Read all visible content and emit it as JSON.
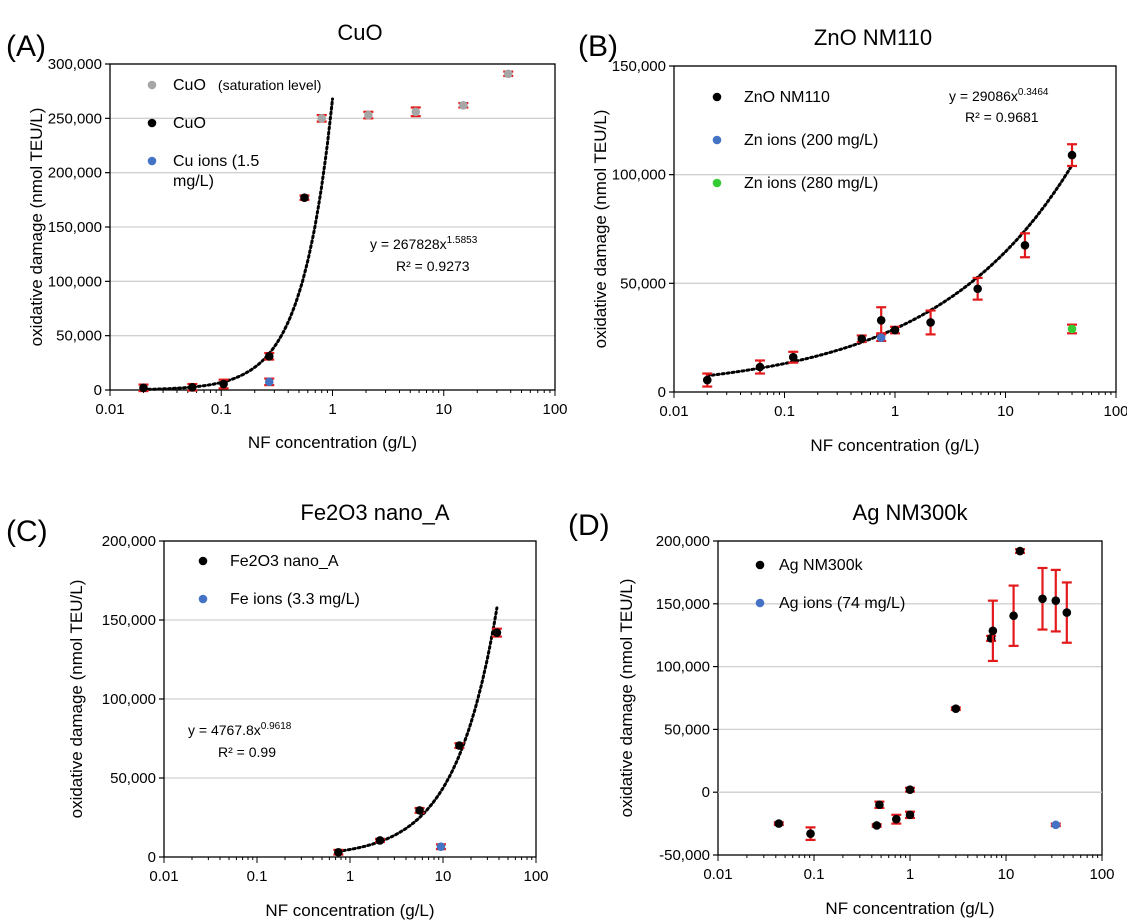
{
  "chart_data": [
    {
      "type": "scatter",
      "panel": "(A)",
      "title": "CuO",
      "xlabel": "NF concentration (g/L)",
      "ylabel": "oxidative damage (nmol TEU/L)",
      "xscale": "log",
      "xlim": [
        0.01,
        100
      ],
      "ylim": [
        0,
        300000
      ],
      "xticks": [
        0.01,
        0.1,
        1,
        10,
        100
      ],
      "xtick_labels": [
        "0.01",
        "0.1",
        "1",
        "10",
        "100"
      ],
      "yticks": [
        0,
        50000,
        100000,
        150000,
        200000,
        250000,
        300000
      ],
      "ytick_labels": [
        "0",
        "50,000",
        "100,000",
        "150,000",
        "200,000",
        "250,000",
        "300,000"
      ],
      "grid": "horizontal",
      "legend_position": "top-left",
      "series": [
        {
          "name": "CuO",
          "name_suffix": "(saturation level)",
          "color": "#a6a6a6",
          "x": [
            0.8,
            2.1,
            5.6,
            15,
            38
          ],
          "y": [
            250000,
            253000,
            256000,
            262000,
            291000
          ],
          "err": [
            3000,
            3000,
            4000,
            2000,
            2000
          ]
        },
        {
          "name": "CuO",
          "color": "#000000",
          "x": [
            0.02,
            0.055,
            0.105,
            0.27,
            0.56
          ],
          "y": [
            2000,
            2500,
            5500,
            31000,
            177000
          ],
          "err": [
            3000,
            3000,
            4000,
            3000,
            2000
          ]
        },
        {
          "name": "Cu ions (1.5",
          "name_line2": "mg/L)",
          "color": "#4472c4",
          "x": [
            0.27
          ],
          "y": [
            7500
          ],
          "err": [
            3000
          ]
        }
      ],
      "trendline": {
        "a": 267828,
        "b": 1.5853,
        "x_range": [
          0.02,
          1.0
        ],
        "equation_base": "y = 267828x",
        "equation_exp": "1.5853",
        "r2": "R² = 0.9273"
      }
    },
    {
      "type": "scatter",
      "panel": "(B)",
      "title": "ZnO NM110",
      "xlabel": "NF concentration (g/L)",
      "ylabel": "oxidative damage (nmol TEU/L)",
      "xscale": "log",
      "xlim": [
        0.01,
        100
      ],
      "ylim": [
        0,
        150000
      ],
      "xticks": [
        0.01,
        0.1,
        1,
        10,
        100
      ],
      "xtick_labels": [
        "0.01",
        "0.1",
        "1",
        "10",
        "100"
      ],
      "yticks": [
        0,
        50000,
        100000,
        150000
      ],
      "ytick_labels": [
        "0",
        "50,000",
        "100,000",
        "150,000"
      ],
      "grid": "horizontal",
      "legend_position": "top-left",
      "series": [
        {
          "name": "ZnO NM110",
          "color": "#000000",
          "x": [
            0.02,
            0.06,
            0.12,
            0.5,
            0.75,
            1.0,
            2.1,
            5.6,
            15,
            40
          ],
          "y": [
            5500,
            11500,
            16000,
            24500,
            33000,
            28500,
            32000,
            47500,
            67500,
            109000
          ],
          "err": [
            3000,
            3000,
            2500,
            1500,
            6000,
            1500,
            5500,
            5000,
            5500,
            5000
          ]
        },
        {
          "name": "Zn ions (200 mg/L)",
          "color": "#4472c4",
          "x": [
            0.75
          ],
          "y": [
            25000
          ],
          "err": [
            1500
          ]
        },
        {
          "name": "Zn ions (280 mg/L)",
          "color": "#33cc33",
          "x": [
            40
          ],
          "y": [
            29000
          ],
          "err": [
            2000
          ]
        }
      ],
      "trendline": {
        "a": 29086,
        "b": 0.3464,
        "x_range": [
          0.02,
          40
        ],
        "equation_base": "y = 29086x",
        "equation_exp": "0.3464",
        "r2": "R² = 0.9681"
      }
    },
    {
      "type": "scatter",
      "panel": "(C)",
      "title": "Fe2O3 nano_A",
      "xlabel": "NF concentration (g/L)",
      "ylabel": "oxidative damage (nmol TEU/L)",
      "xscale": "log",
      "xlim": [
        0.01,
        100
      ],
      "ylim": [
        0,
        200000
      ],
      "xticks": [
        0.01,
        0.1,
        1,
        10,
        100
      ],
      "xtick_labels": [
        "0.01",
        "0.1",
        "1",
        "10",
        "100"
      ],
      "yticks": [
        0,
        50000,
        100000,
        150000,
        200000
      ],
      "ytick_labels": [
        "0",
        "50,000",
        "100,000",
        "150,000",
        "200,000"
      ],
      "grid": "horizontal",
      "legend_position": "top-left",
      "series": [
        {
          "name": "Fe2O3 nano_A",
          "color": "#000000",
          "x": [
            0.75,
            2.1,
            5.6,
            15,
            38
          ],
          "y": [
            3000,
            10500,
            29500,
            70500,
            142000
          ],
          "err": [
            1500,
            1000,
            1500,
            1500,
            2500
          ]
        },
        {
          "name": "Fe ions (3.3 mg/L)",
          "color": "#4472c4",
          "x": [
            9.5
          ],
          "y": [
            6500
          ],
          "err": [
            1500
          ]
        }
      ],
      "trendline": {
        "a": 4767.8,
        "b": 0.9618,
        "x_range": [
          0.75,
          38
        ],
        "equation_base": "y = 4767.8x",
        "equation_exp": "0.9618",
        "r2": "R² = 0.99"
      }
    },
    {
      "type": "scatter",
      "panel": "(D)",
      "title": "Ag NM300k",
      "xlabel": "NF concentration (g/L)",
      "ylabel": "oxidative damage (nmol TEU/L)",
      "xscale": "log",
      "xlim": [
        0.01,
        100
      ],
      "ylim": [
        -50000,
        200000
      ],
      "xticks": [
        0.01,
        0.1,
        1,
        10,
        100
      ],
      "xtick_labels": [
        "0.01",
        "0.1",
        "1",
        "10",
        "100"
      ],
      "yticks": [
        -50000,
        0,
        50000,
        100000,
        150000,
        200000
      ],
      "ytick_labels": [
        "-50,000",
        "0",
        "50,000",
        "100,000",
        "150,000",
        "200,000"
      ],
      "grid": "horizontal",
      "legend_position": "top-left",
      "series": [
        {
          "name": "Ag NM300k",
          "color": "#000000",
          "x": [
            0.043,
            0.092,
            0.45,
            0.48,
            0.72,
            1.0,
            1.0,
            3.0,
            7.0,
            7.3,
            12,
            14,
            24,
            33,
            43
          ],
          "y": [
            -25000,
            -33000,
            -26500,
            -10000,
            -21500,
            2000,
            -18000,
            66500,
            122500,
            128500,
            140500,
            192000,
            154000,
            152500,
            143000
          ],
          "err": [
            1000,
            5000,
            1000,
            2500,
            3500,
            1500,
            2500,
            1000,
            2000,
            24000,
            24000,
            1500,
            24500,
            24500,
            24000
          ]
        },
        {
          "name": "Ag ions (74 mg/L)",
          "color": "#4472c4",
          "x": [
            33
          ],
          "y": [
            -26000
          ],
          "err": [
            1000
          ]
        }
      ]
    }
  ]
}
